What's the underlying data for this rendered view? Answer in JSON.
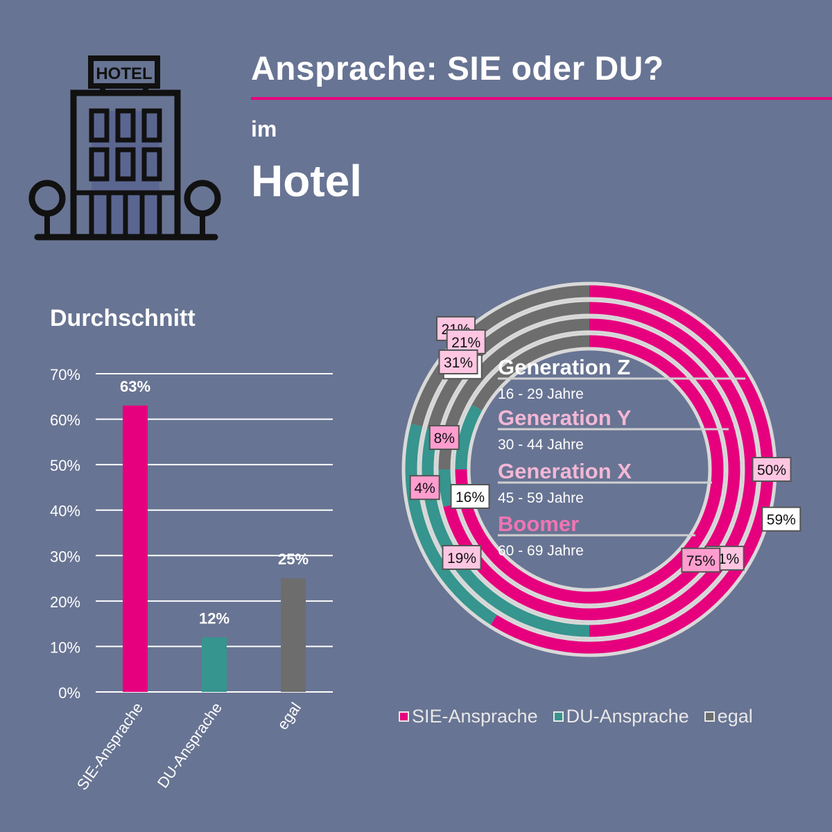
{
  "header": {
    "title": "Ansprache: SIE oder DU?",
    "subtitle_pre": "im",
    "subtitle_main": "Hotel",
    "icon": "hotel-building-icon",
    "icon_sign_text": "HOTEL"
  },
  "colors": {
    "sie": "#e6007e",
    "du": "#36958e",
    "egal": "#6d6d6d",
    "ring_stroke": "#d9d9d9",
    "accent": "#e6007e"
  },
  "chart_data": [
    {
      "type": "bar",
      "title": "Durchschnitt",
      "categories": [
        "SIE-Ansprache",
        "DU-Ansprache",
        "egal"
      ],
      "values": [
        63,
        12,
        25
      ],
      "value_labels": [
        "63%",
        "12%",
        "25%"
      ],
      "ylim": [
        0,
        70
      ],
      "yticks": [
        0,
        10,
        20,
        30,
        40,
        50,
        60,
        70
      ],
      "ytick_labels": [
        "0%",
        "10%",
        "20%",
        "30%",
        "40%",
        "50%",
        "60%",
        "70%"
      ],
      "grid": true
    },
    {
      "type": "donut",
      "categories": [
        "SIE-Ansprache",
        "DU-Ansprache",
        "egal"
      ],
      "legend_position": "bottom",
      "series": [
        {
          "name": "Generation Z",
          "age_range": "16 - 29 Jahre",
          "values": [
            59,
            20,
            21
          ],
          "labels": [
            "59%",
            "",
            "21%"
          ]
        },
        {
          "name": "Generation Y",
          "age_range": "30 - 44 Jahre",
          "values": [
            50,
            29,
            21
          ],
          "labels": [
            "50%",
            "",
            "21%"
          ]
        },
        {
          "name": "Generation X",
          "age_range": "45 - 59 Jahre",
          "values": [
            71,
            4,
            25
          ],
          "labels": [
            "71%",
            "4%",
            "25%"
          ]
        },
        {
          "name": "Boomer",
          "age_range": "60 - 69 Jahre",
          "values": [
            75,
            8,
            17
          ],
          "labels": [
            "75%",
            "8%",
            ""
          ]
        }
      ],
      "extra_labels": [
        "31%",
        "16%",
        "19%"
      ]
    }
  ]
}
